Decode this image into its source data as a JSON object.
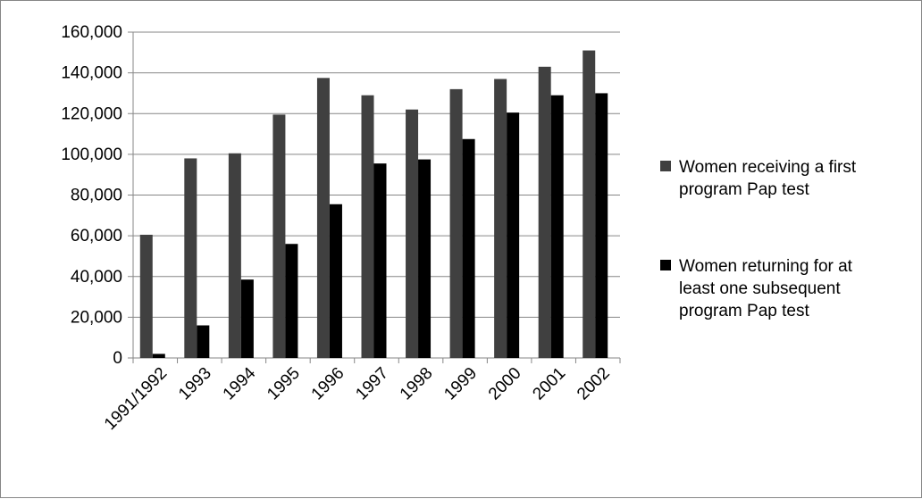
{
  "chart_data": {
    "type": "bar",
    "categories": [
      "1991/1992",
      "1993",
      "1994",
      "1995",
      "1996",
      "1997",
      "1998",
      "1999",
      "2000",
      "2001",
      "2002"
    ],
    "series": [
      {
        "name": "Women receiving a first program Pap test",
        "legend_lines": [
          "Women receiving a first",
          "program Pap test"
        ],
        "color": "#404040",
        "values": [
          60500,
          98000,
          100500,
          119500,
          137500,
          129000,
          122000,
          132000,
          137000,
          143000,
          151000
        ]
      },
      {
        "name": "Women returning for at least one subsequent program Pap test",
        "legend_lines": [
          "Women returning for at",
          "least one subsequent",
          "program Pap test"
        ],
        "color": "#000000",
        "values": [
          2000,
          16000,
          38500,
          56000,
          75500,
          95500,
          97500,
          107500,
          120500,
          129000,
          130000
        ]
      }
    ],
    "ylim": [
      0,
      160000
    ],
    "yticks": [
      0,
      20000,
      40000,
      60000,
      80000,
      100000,
      120000,
      140000,
      160000
    ],
    "ytick_labels": [
      "0",
      "20,000",
      "40,000",
      "60,000",
      "80,000",
      "100,000",
      "120,000",
      "140,000",
      "160,000"
    ],
    "grid": true,
    "legend_position": "right",
    "title": "",
    "xlabel": "",
    "ylabel": ""
  }
}
